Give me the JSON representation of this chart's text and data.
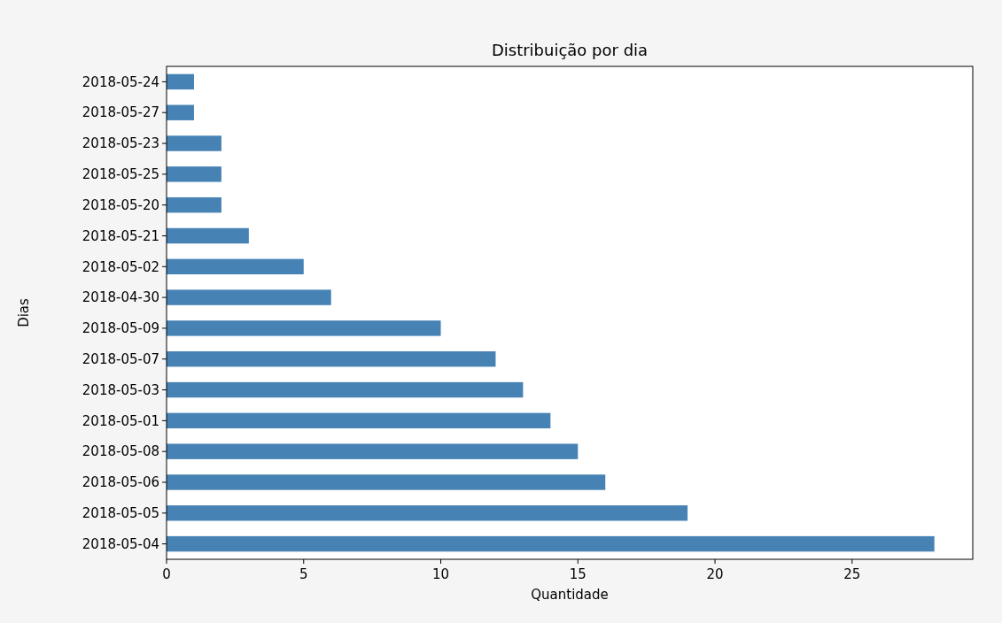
{
  "chart_data": {
    "type": "bar",
    "orientation": "horizontal",
    "title": "Distribuição por dia",
    "xlabel": "Quantidade",
    "ylabel": "Dias",
    "categories": [
      "2018-05-24",
      "2018-05-27",
      "2018-05-23",
      "2018-05-25",
      "2018-05-20",
      "2018-05-21",
      "2018-05-02",
      "2018-04-30",
      "2018-05-09",
      "2018-05-07",
      "2018-05-03",
      "2018-05-01",
      "2018-05-08",
      "2018-05-06",
      "2018-05-05",
      "2018-05-04"
    ],
    "values": [
      1,
      1,
      2,
      2,
      2,
      3,
      5,
      6,
      10,
      12,
      13,
      14,
      15,
      16,
      19,
      28
    ],
    "color": "#4682b4",
    "xlim": [
      0,
      29.4
    ],
    "xticks": [
      0,
      5,
      10,
      15,
      20,
      25
    ],
    "grid": false
  }
}
